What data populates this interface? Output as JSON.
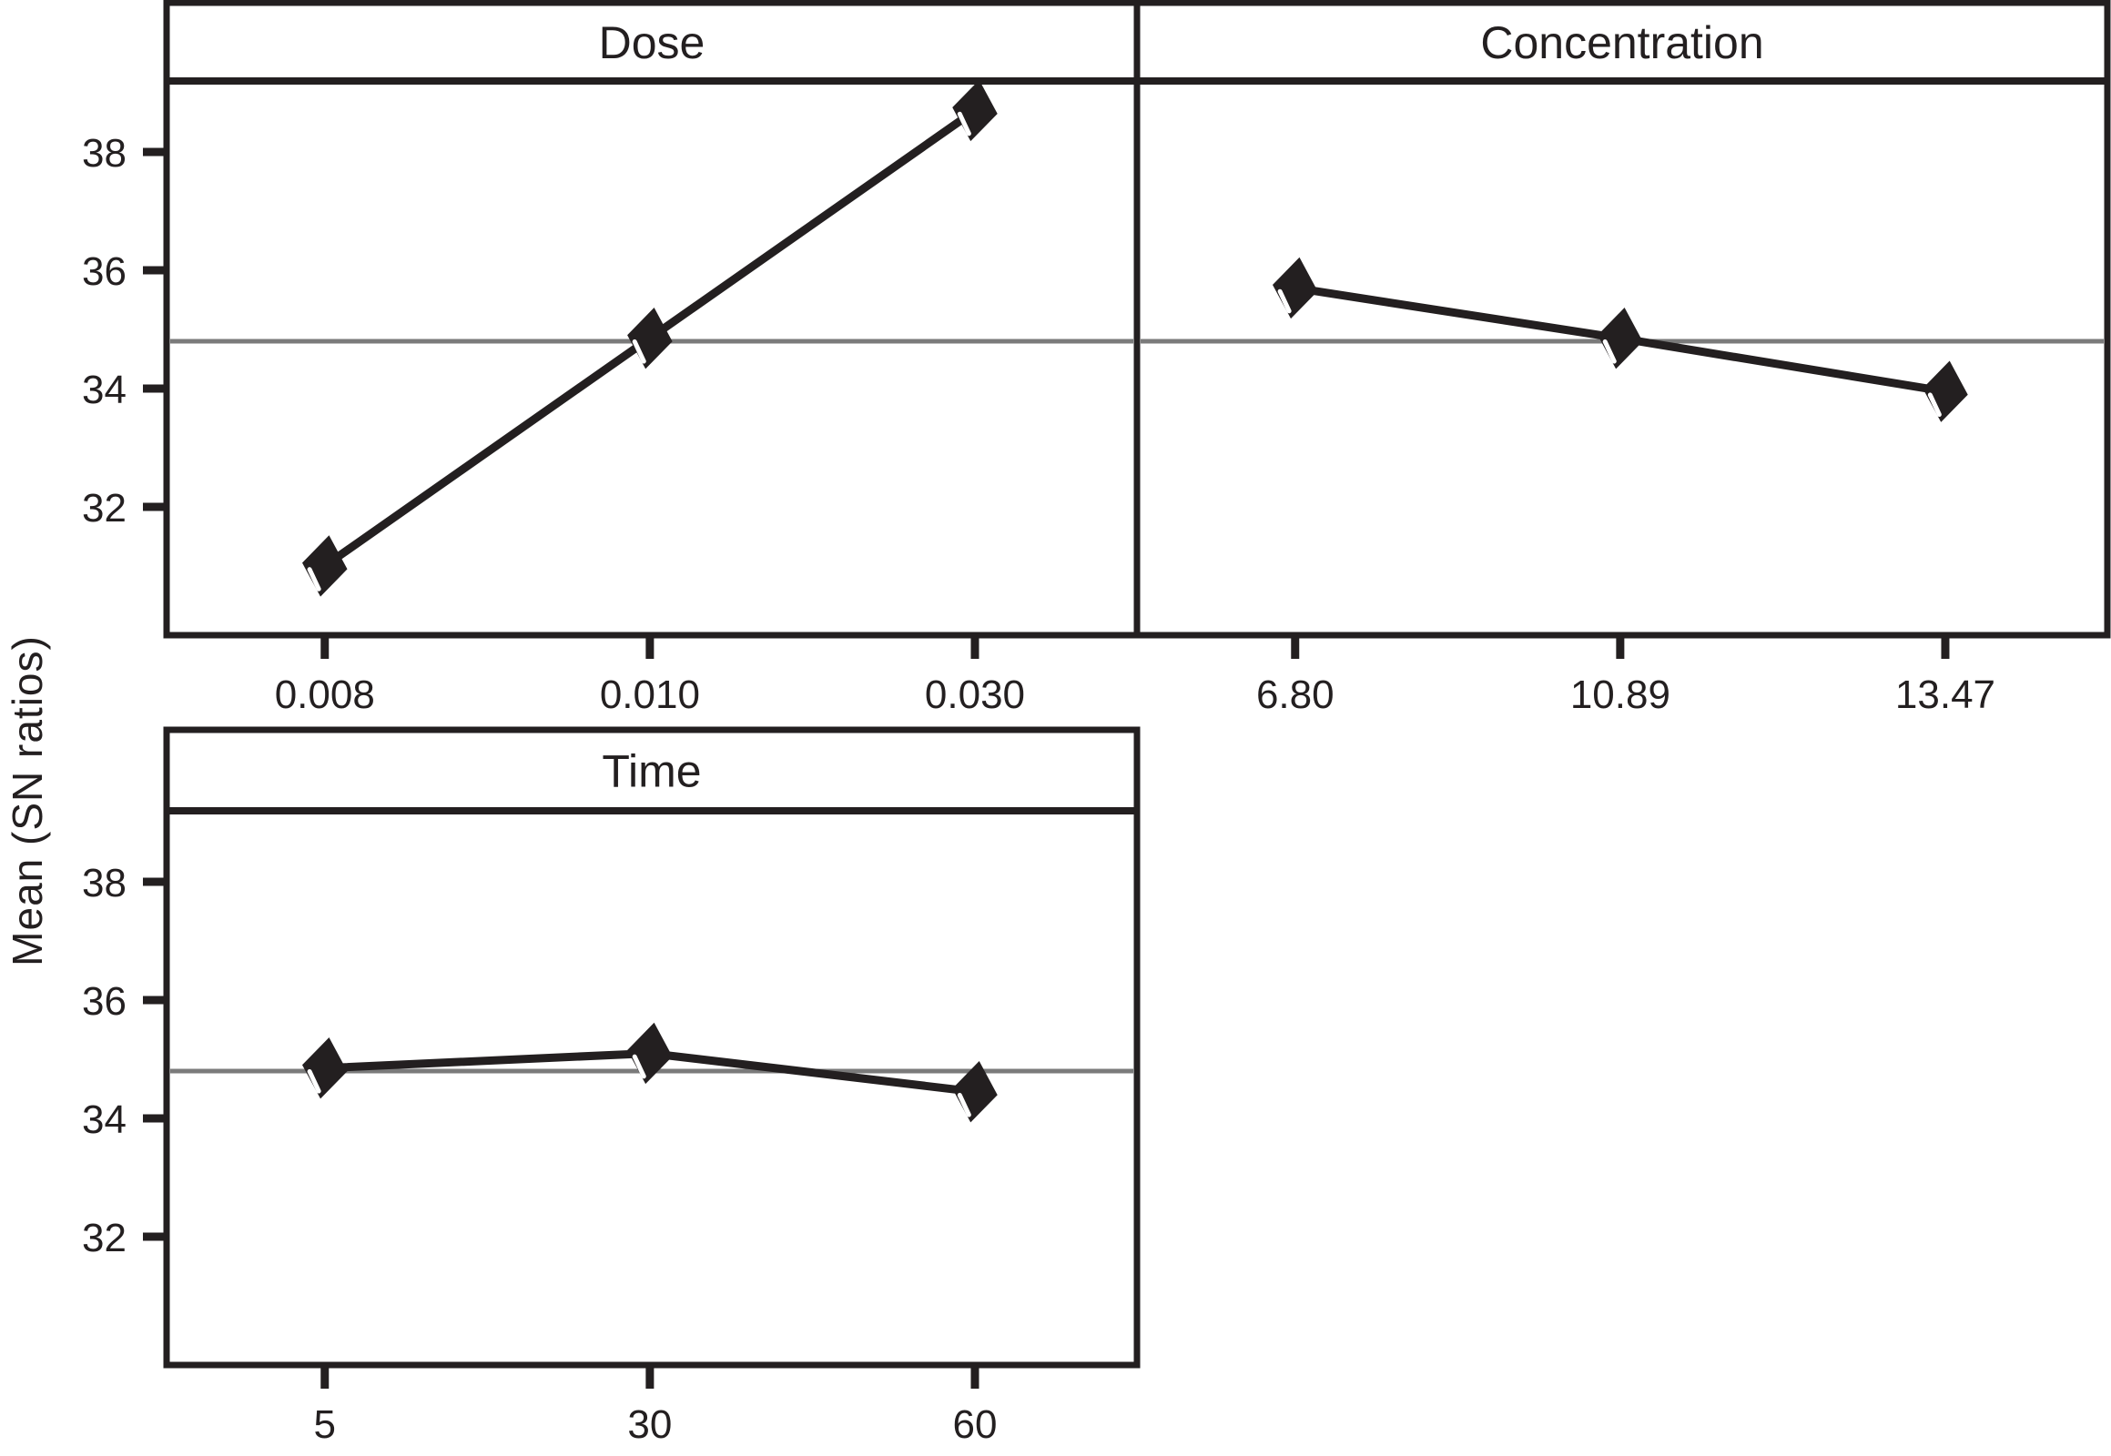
{
  "figure": {
    "kind": "main-effects-plot"
  },
  "chart_data": {
    "type": "line",
    "title": "",
    "ylabel": "Mean (SN ratios)",
    "xlabel": "",
    "y_ticks": [
      38,
      36,
      34,
      32
    ],
    "ylim": [
      29.83,
      39.2
    ],
    "reference_mean": 34.8,
    "grid": false,
    "legend": false,
    "marker": "diamond",
    "colors": {
      "line": "#231f20",
      "marker": "#231f20",
      "marker_highlight": "#ffffff",
      "reference_line": "#7b7b7b",
      "border": "#231f20",
      "text": "#231f20",
      "background": "#ffffff"
    },
    "panels": [
      {
        "id": "dose",
        "title": "Dose",
        "categories": [
          "0.008",
          "0.010",
          "0.030"
        ],
        "values": [
          31.0,
          34.85,
          38.7
        ]
      },
      {
        "id": "concentration",
        "title": "Concentration",
        "categories": [
          "6.80",
          "10.89",
          "13.47"
        ],
        "values": [
          35.7,
          34.85,
          33.95
        ]
      },
      {
        "id": "time",
        "title": "Time",
        "categories": [
          "5",
          "30",
          "60"
        ],
        "values": [
          34.85,
          35.1,
          34.45
        ]
      }
    ]
  }
}
